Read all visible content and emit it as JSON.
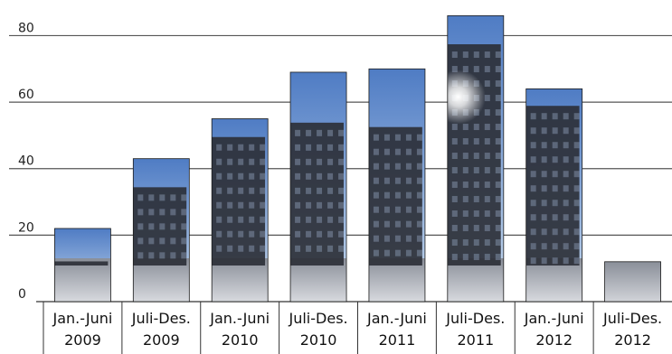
{
  "chart_data": {
    "type": "bar",
    "title": "",
    "xlabel": "",
    "ylabel": "",
    "ylim": [
      0,
      88
    ],
    "yticks": [
      0,
      20,
      40,
      60,
      80
    ],
    "grid": true,
    "categories": [
      [
        "Jan.-Juni",
        "2009"
      ],
      [
        "Juli-Des.",
        "2009"
      ],
      [
        "Jan.-Juni",
        "2010"
      ],
      [
        "Juli-Des.",
        "2010"
      ],
      [
        "Jan.-Juni",
        "2011"
      ],
      [
        "Juli-Des.",
        "2011"
      ],
      [
        "Jan.-Juni",
        "2012"
      ],
      [
        "Juli-Des.",
        "2012"
      ]
    ],
    "values": [
      22,
      43,
      55,
      69,
      70,
      86,
      64,
      12
    ],
    "bar_fill": "photo of city buildings against blue sky",
    "colors": {
      "sky_top": "#5d86c8",
      "sky_bottom": "#c9dbef",
      "building": "#2d3038",
      "grid": "#555555"
    }
  }
}
